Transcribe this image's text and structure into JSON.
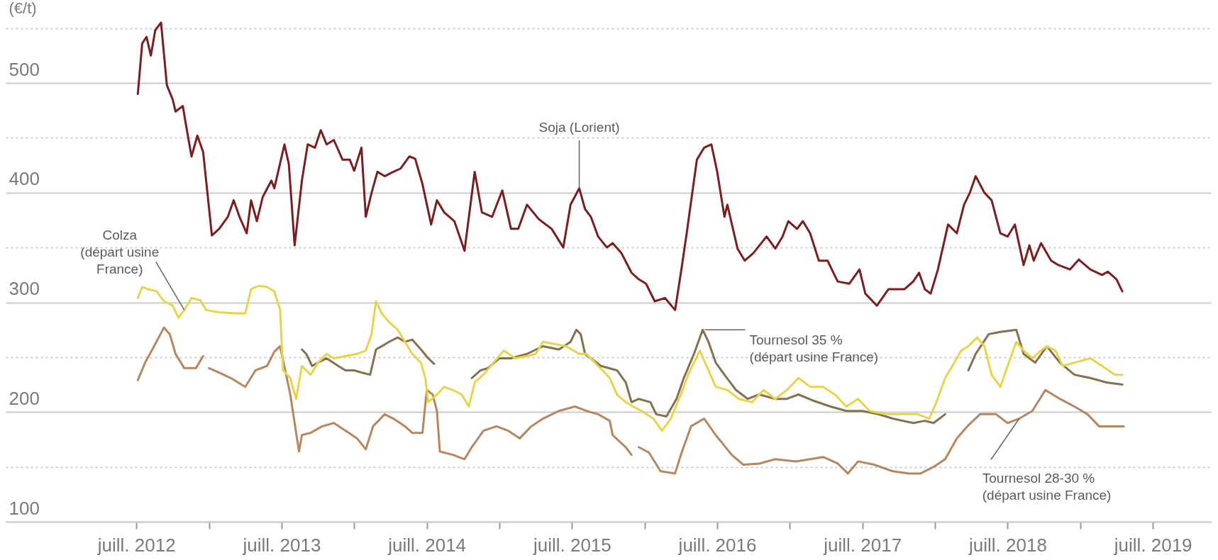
{
  "chart_data": {
    "type": "line",
    "ylabel": "(€/t)",
    "xlim": [
      2011.6,
      2019.9
    ],
    "ylim": [
      100,
      575
    ],
    "xticks": [
      {
        "value": 2012.5,
        "label": "juill. 2012"
      },
      {
        "value": 2013,
        "label": null
      },
      {
        "value": 2013.5,
        "label": "juill. 2013"
      },
      {
        "value": 2014,
        "label": null
      },
      {
        "value": 2014.5,
        "label": "juill. 2014"
      },
      {
        "value": 2015,
        "label": null
      },
      {
        "value": 2015.5,
        "label": "juill. 2015"
      },
      {
        "value": 2016,
        "label": null
      },
      {
        "value": 2016.5,
        "label": "juill. 2016"
      },
      {
        "value": 2017,
        "label": null
      },
      {
        "value": 2017.5,
        "label": "juill. 2017"
      },
      {
        "value": 2018,
        "label": null
      },
      {
        "value": 2018.5,
        "label": "juill. 2018"
      },
      {
        "value": 2019,
        "label": null
      },
      {
        "value": 2019.5,
        "label": "juill. 2019"
      }
    ],
    "yticks": [
      100,
      {
        "value": 150,
        "label": null
      },
      200,
      {
        "value": 250,
        "label": null
      },
      300,
      {
        "value": 350,
        "label": null
      },
      400,
      {
        "value": 450,
        "label": null
      },
      500,
      {
        "value": 550,
        "label": null
      }
    ],
    "grid": "y",
    "series": [
      {
        "color": "#b8865e",
        "x": [
          2012.51,
          2012.56,
          2012.61,
          2012.69,
          2012.73,
          2012.77,
          2012.83,
          2012.91,
          2012.96,
          2012.98,
          2013.0,
          2013.07,
          2013.15,
          2013.25,
          2013.32,
          2013.4,
          2013.45,
          2013.49,
          2013.56,
          2013.62,
          2013.64,
          2013.7,
          2013.78,
          2013.86,
          2013.94,
          2014.02,
          2014.08,
          2014.13,
          2014.21,
          2014.27,
          2014.35,
          2014.4,
          2014.47,
          2014.5,
          2014.54,
          2014.57,
          2014.59,
          2014.68,
          2014.76,
          2014.81,
          2014.89,
          2014.98,
          2015.06,
          2015.14,
          2015.22,
          2015.3,
          2015.41,
          2015.52,
          2015.6,
          2015.68,
          2015.76,
          2015.78,
          2015.87,
          2015.91,
          2015.93,
          2015.96,
          2016.03,
          2016.11,
          2016.21,
          2016.25,
          2016.32,
          2016.41,
          2016.49,
          2016.6,
          2016.68,
          2016.79,
          2016.9,
          2017.04,
          2017.14,
          2017.23,
          2017.33,
          2017.4,
          2017.47,
          2017.58,
          2017.71,
          2017.82,
          2017.9,
          2017.99,
          2018.07,
          2018.15,
          2018.23,
          2018.31,
          2018.42,
          2018.5,
          2018.58,
          2018.67,
          2018.76,
          2018.86,
          2018.96,
          2019.05,
          2019.13,
          2019.24,
          2019.3
        ],
        "values": [
          229,
          245,
          257,
          277,
          271,
          253,
          240,
          240,
          251,
          null,
          240,
          236,
          231,
          223,
          238,
          242,
          255,
          260,
          216,
          164,
          179,
          181,
          187,
          190,
          183,
          176,
          166,
          187,
          198,
          194,
          187,
          181,
          181,
          220,
          216,
          201,
          164,
          161,
          157,
          168,
          183,
          187,
          183,
          176,
          187,
          194,
          201,
          205,
          201,
          198,
          192,
          179,
          168,
          161,
          null,
          168,
          163,
          146,
          144,
          161,
          187,
          194,
          179,
          161,
          152,
          153,
          157,
          155,
          157,
          159,
          153,
          144,
          155,
          152,
          146,
          144,
          144,
          150,
          157,
          176,
          188,
          198,
          198,
          190,
          194,
          201,
          220,
          212,
          205,
          198,
          187,
          187,
          187
        ]
      },
      {
        "color": "#86704f",
        "x": [
          2013.64,
          2013.67,
          2013.71,
          2013.75,
          2013.81,
          2013.89,
          2013.94,
          2014.0,
          2014.05,
          2014.11,
          2014.15,
          2014.19,
          2014.24,
          2014.3,
          2014.35,
          2014.4,
          2014.46,
          2014.51,
          2014.55,
          2014.7,
          2014.81,
          2014.87,
          2014.92,
          2015.0,
          2015.08,
          2015.19,
          2015.3,
          2015.41,
          2015.49,
          2015.53,
          2015.56,
          2015.59,
          2015.63,
          2015.7,
          2015.81,
          2015.87,
          2015.91,
          2015.96,
          2016.04,
          2016.08,
          2016.15,
          2016.22,
          2016.27,
          2016.34,
          2016.4,
          2016.44,
          2016.49,
          2016.55,
          2016.63,
          2016.71,
          2016.79,
          2016.9,
          2016.98,
          2017.06,
          2017.17,
          2017.28,
          2017.39,
          2017.5,
          2017.61,
          2017.71,
          2017.85,
          2017.93,
          2017.99,
          2018.07,
          2018.15,
          2018.23,
          2018.28,
          2018.37,
          2018.45,
          2018.56,
          2018.61,
          2018.69,
          2018.77,
          2018.86,
          2018.96,
          2019.07,
          2019.18,
          2019.29
        ],
        "values": [
          257,
          253,
          242,
          245,
          249,
          242,
          238,
          238,
          236,
          234,
          257,
          260,
          264,
          268,
          264,
          266,
          257,
          249,
          244,
          null,
          231,
          238,
          240,
          249,
          249,
          253,
          260,
          257,
          264,
          275,
          271,
          253,
          249,
          242,
          238,
          227,
          209,
          212,
          209,
          198,
          196,
          212,
          231,
          253,
          275,
          264,
          245,
          234,
          220,
          212,
          216,
          212,
          212,
          216,
          210,
          205,
          201,
          201,
          198,
          194,
          190,
          192,
          190,
          198,
          null,
          238,
          253,
          271,
          273,
          275,
          253,
          245,
          260,
          245,
          234,
          231,
          227,
          225
        ]
      },
      {
        "color": "#e8d44a",
        "x": [
          2012.51,
          2012.54,
          2012.58,
          2012.64,
          2012.69,
          2012.75,
          2012.79,
          2012.83,
          2012.88,
          2012.94,
          2012.98,
          2013.07,
          2013.18,
          2013.25,
          2013.29,
          2013.34,
          2013.4,
          2013.45,
          2013.49,
          2013.51,
          2013.56,
          2013.6,
          2013.64,
          2013.7,
          2013.75,
          2013.81,
          2013.86,
          2013.94,
          2014.02,
          2014.08,
          2014.12,
          2014.15,
          2014.19,
          2014.24,
          2014.3,
          2014.35,
          2014.4,
          2014.46,
          2014.49,
          2014.51,
          2014.57,
          2014.62,
          2014.68,
          2014.74,
          2014.79,
          2014.83,
          2014.89,
          2014.96,
          2015.03,
          2015.11,
          2015.19,
          2015.25,
          2015.3,
          2015.38,
          2015.46,
          2015.55,
          2015.6,
          2015.68,
          2015.76,
          2015.81,
          2015.87,
          2015.92,
          2015.98,
          2016.06,
          2016.12,
          2016.18,
          2016.25,
          2016.3,
          2016.38,
          2016.44,
          2016.49,
          2016.57,
          2016.65,
          2016.74,
          2016.82,
          2016.9,
          2016.98,
          2017.06,
          2017.14,
          2017.23,
          2017.31,
          2017.39,
          2017.47,
          2017.55,
          2017.66,
          2017.77,
          2017.88,
          2017.96,
          2018.01,
          2018.07,
          2018.12,
          2018.18,
          2018.23,
          2018.29,
          2018.34,
          2018.39,
          2018.45,
          2018.5,
          2018.56,
          2018.61,
          2018.67,
          2018.72,
          2018.77,
          2018.83,
          2018.88,
          2018.96,
          2019.07,
          2019.15,
          2019.24,
          2019.29
        ],
        "values": [
          304,
          314,
          312,
          310,
          301,
          297,
          286,
          293,
          304,
          302,
          293,
          291,
          290,
          290,
          312,
          315,
          314,
          310,
          293,
          238,
          231,
          212,
          242,
          234,
          245,
          253,
          249,
          251,
          253,
          256,
          271,
          301,
          290,
          282,
          275,
          264,
          253,
          245,
          231,
          209,
          216,
          223,
          220,
          216,
          205,
          227,
          234,
          245,
          256,
          249,
          251,
          253,
          264,
          262,
          260,
          253,
          253,
          242,
          231,
          216,
          209,
          205,
          201,
          194,
          183,
          194,
          216,
          234,
          256,
          238,
          223,
          220,
          212,
          209,
          220,
          212,
          220,
          231,
          223,
          223,
          216,
          205,
          212,
          201,
          198,
          198,
          198,
          194,
          209,
          231,
          242,
          256,
          260,
          268,
          260,
          234,
          223,
          242,
          264,
          256,
          249,
          255,
          260,
          256,
          242,
          245,
          249,
          242,
          234,
          234
        ]
      },
      {
        "color": "#7a1f1f",
        "x": [
          2012.51,
          2012.54,
          2012.57,
          2012.6,
          2012.63,
          2012.67,
          2012.71,
          2012.75,
          2012.77,
          2012.82,
          2012.84,
          2012.88,
          2012.92,
          2012.96,
          2013.02,
          2013.07,
          2013.13,
          2013.17,
          2013.21,
          2013.26,
          2013.29,
          2013.33,
          2013.37,
          2013.43,
          2013.45,
          2013.52,
          2013.55,
          2013.59,
          2013.64,
          2013.68,
          2013.73,
          2013.77,
          2013.81,
          2013.86,
          2013.92,
          2013.97,
          2014.0,
          2014.05,
          2014.08,
          2014.12,
          2014.16,
          2014.21,
          2014.27,
          2014.32,
          2014.38,
          2014.42,
          2014.47,
          2014.53,
          2014.57,
          2014.62,
          2014.69,
          2014.76,
          2014.83,
          2014.88,
          2014.95,
          2015.02,
          2015.08,
          2015.13,
          2015.19,
          2015.27,
          2015.36,
          2015.44,
          2015.49,
          2015.55,
          2015.59,
          2015.63,
          2015.68,
          2015.74,
          2015.78,
          2015.84,
          2015.91,
          2015.96,
          2016.01,
          2016.07,
          2016.14,
          2016.21,
          2016.25,
          2016.29,
          2016.36,
          2016.41,
          2016.46,
          2016.5,
          2016.55,
          2016.57,
          2016.64,
          2016.69,
          2016.75,
          2016.84,
          2016.9,
          2016.95,
          2016.99,
          2017.05,
          2017.09,
          2017.14,
          2017.2,
          2017.26,
          2017.33,
          2017.41,
          2017.48,
          2017.52,
          2017.6,
          2017.68,
          2017.79,
          2017.85,
          2017.89,
          2017.93,
          2017.97,
          2018.02,
          2018.09,
          2018.15,
          2018.2,
          2018.24,
          2018.28,
          2018.34,
          2018.39,
          2018.45,
          2018.5,
          2018.55,
          2018.61,
          2018.65,
          2018.68,
          2018.73,
          2018.8,
          2018.85,
          2018.93,
          2018.99,
          2019.07,
          2019.15,
          2019.19,
          2019.25,
          2019.29
        ],
        "values": [
          490,
          536,
          542,
          525,
          548,
          555,
          498,
          485,
          474,
          479,
          463,
          433,
          452,
          437,
          361,
          367,
          378,
          393,
          378,
          363,
          393,
          374,
          396,
          411,
          404,
          444,
          426,
          352,
          411,
          444,
          441,
          457,
          444,
          448,
          430,
          430,
          420,
          441,
          378,
          400,
          419,
          415,
          419,
          422,
          433,
          431,
          408,
          371,
          393,
          382,
          374,
          347,
          419,
          382,
          378,
          402,
          367,
          367,
          389,
          376,
          367,
          350,
          389,
          404,
          385,
          378,
          360,
          350,
          354,
          345,
          327,
          321,
          317,
          301,
          304,
          293,
          327,
          363,
          430,
          441,
          444,
          419,
          378,
          389,
          349,
          338,
          345,
          360,
          349,
          360,
          374,
          367,
          374,
          363,
          338,
          338,
          319,
          317,
          330,
          308,
          297,
          312,
          312,
          319,
          327,
          312,
          308,
          330,
          371,
          363,
          389,
          400,
          415,
          400,
          393,
          363,
          360,
          371,
          334,
          352,
          338,
          354,
          338,
          334,
          330,
          339,
          330,
          325,
          328,
          321,
          310
        ]
      }
    ],
    "annotations": [
      {
        "text": "Soja (Lorient)",
        "x": 2015.55,
        "y": 404
      },
      {
        "text": "Colza\n(départ usine\nFrance)",
        "x": 2012.83,
        "y": 293
      },
      {
        "text": "Tournesol 35 %\n(départ usine France)",
        "x": 2016.4,
        "y": 275
      },
      {
        "text": "Tournesol 28-30 %\n(départ usine France)",
        "x": 2018.58,
        "y": 194
      }
    ]
  }
}
